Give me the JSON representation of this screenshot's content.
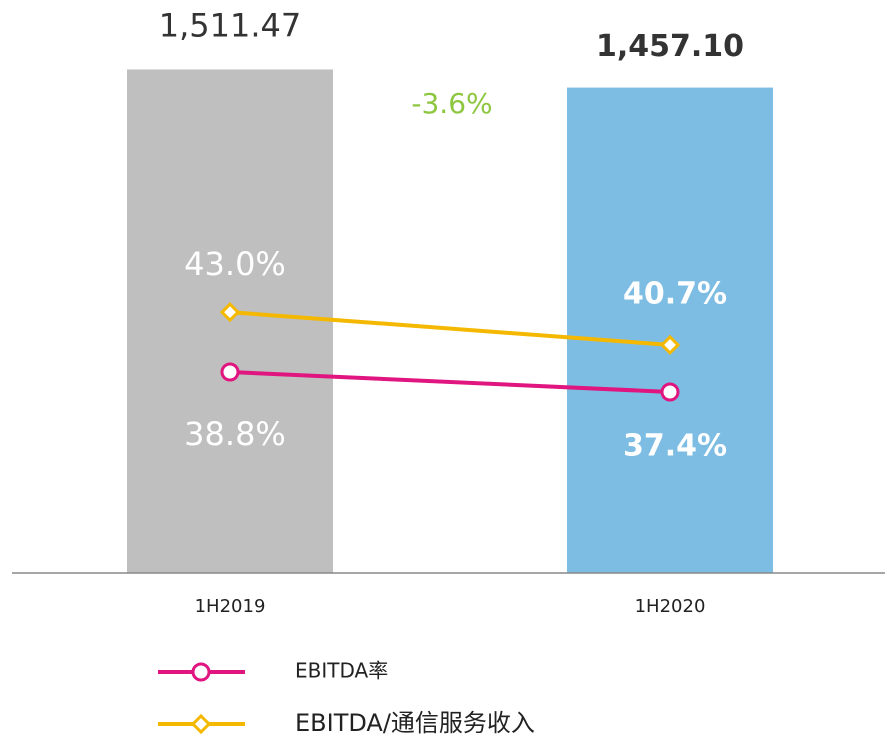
{
  "chart_data": {
    "type": "bar",
    "categories": [
      "1H2019",
      "1H2020"
    ],
    "values": [
      1511.47,
      1457.1
    ],
    "value_labels": [
      "1,511.47",
      "1,457.10"
    ],
    "colors": [
      "#bfbfbf",
      "#7dbde3"
    ],
    "ylim": [
      0,
      1720
    ],
    "y2lim": [
      24.7,
      64.9
    ],
    "series": [
      {
        "name": "EBITDA率",
        "color": "#e0157f",
        "marker": "circle",
        "axis": "y2",
        "values": [
          38.8,
          37.4
        ],
        "value_labels": [
          "38.8%",
          "37.4%"
        ]
      },
      {
        "name": "EBITDA/通信服务收入",
        "color": "#f5b800",
        "marker": "diamond",
        "axis": "y2",
        "values": [
          43.0,
          40.7
        ],
        "value_labels": [
          "43.0%",
          "40.7%"
        ]
      }
    ],
    "annotation": "-3.6%"
  }
}
